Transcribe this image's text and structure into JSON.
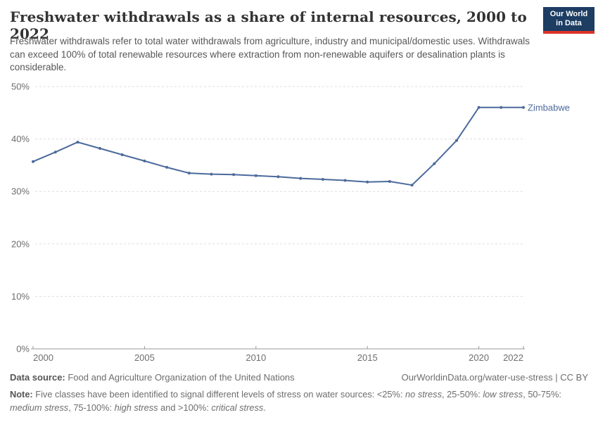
{
  "header": {
    "title": "Freshwater withdrawals as a share of internal resources, 2000 to 2022",
    "subtitle": "Freshwater withdrawals refer to total water withdrawals from agriculture, industry and municipal/domestic uses. Withdrawals can exceed 100% of total renewable resources where extraction from non-renewable aquifers or desalination plants is considerable.",
    "logo": {
      "line1": "Our World",
      "line2": "in Data",
      "bg_color": "#1d3d63",
      "accent_color": "#dc3327"
    }
  },
  "chart_data": {
    "type": "line",
    "title": "Freshwater withdrawals as a share of internal resources, 2000 to 2022",
    "xlabel": "",
    "ylabel": "",
    "x": [
      2000,
      2001,
      2002,
      2003,
      2004,
      2005,
      2006,
      2007,
      2008,
      2009,
      2010,
      2011,
      2012,
      2013,
      2014,
      2015,
      2016,
      2017,
      2018,
      2019,
      2020,
      2021,
      2022
    ],
    "series": [
      {
        "name": "Zimbabwe",
        "color": "#4C6A9C",
        "values": [
          35.7,
          37.5,
          39.4,
          38.2,
          37.0,
          35.8,
          34.6,
          33.5,
          33.3,
          33.2,
          33.0,
          32.8,
          32.5,
          32.3,
          32.1,
          31.8,
          31.9,
          31.2,
          35.3,
          39.7,
          46.0,
          46.0,
          46.0
        ]
      }
    ],
    "xlim": [
      2000,
      2022
    ],
    "ylim": [
      0,
      50
    ],
    "yticks": [
      0,
      10,
      20,
      30,
      40,
      50
    ],
    "ytick_suffix": "%",
    "xticks": [
      2000,
      2005,
      2010,
      2015,
      2020,
      2022
    ],
    "grid": "horizontal-dashed",
    "legend_position": "end-of-line-label",
    "gridline_color": "#dddddd",
    "axis_color": "#999999",
    "tick_label_color": "#6e6e6e"
  },
  "footer": {
    "data_source_label": "Data source:",
    "data_source_value": " Food and Agriculture Organization of the United Nations",
    "link": "OurWorldinData.org/water-use-stress",
    "license": " | CC BY",
    "note_segments": [
      {
        "t": "Note:",
        "b": true
      },
      {
        "t": " Five classes have been identified to signal different levels of stress on water sources: <25%: "
      },
      {
        "t": "no stress",
        "i": true
      },
      {
        "t": ", 25-50%: "
      },
      {
        "t": "low stress",
        "i": true
      },
      {
        "t": ", 50-75%: "
      },
      {
        "t": "medium stress",
        "i": true
      },
      {
        "t": ", 75-100%: "
      },
      {
        "t": "high stress",
        "i": true
      },
      {
        "t": " and >100%: "
      },
      {
        "t": "critical stress",
        "i": true
      },
      {
        "t": "."
      }
    ]
  }
}
